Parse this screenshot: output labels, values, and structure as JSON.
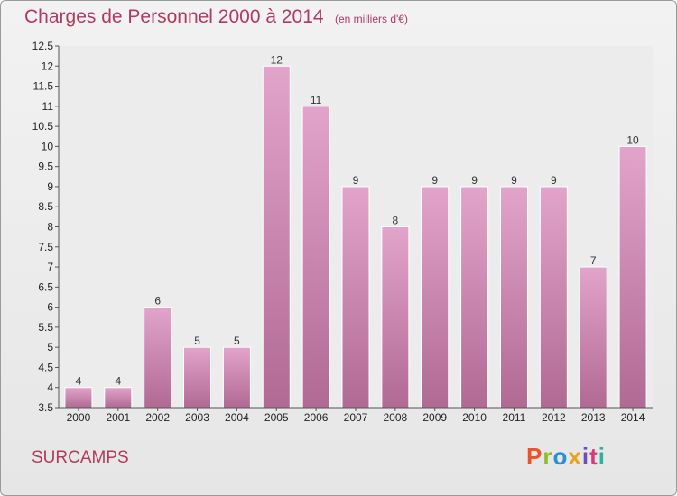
{
  "header": {
    "title": "Charges de Personnel 2000 à 2014",
    "subtitle": "(en milliers d'€)"
  },
  "footer": {
    "commune": "SURCAMPS",
    "logo_text": "Proxiti",
    "logo_colors": [
      "#e8542a",
      "#8bbd2e",
      "#2a8fd6",
      "#e8a21c",
      "#6a4fb6",
      "#d63a7a",
      "#2ab3a0"
    ]
  },
  "chart_data": {
    "type": "bar",
    "title": "Charges de Personnel 2000 à 2014",
    "subtitle": "(en milliers d'€)",
    "xlabel": "",
    "ylabel": "",
    "categories": [
      "2000",
      "2001",
      "2002",
      "2003",
      "2004",
      "2005",
      "2006",
      "2007",
      "2008",
      "2009",
      "2010",
      "2011",
      "2012",
      "2013",
      "2014"
    ],
    "values": [
      4,
      4,
      6,
      5,
      5,
      12,
      11,
      9,
      8,
      9,
      9,
      9,
      9,
      7,
      10
    ],
    "data_labels": [
      "4",
      "4",
      "6",
      "5",
      "5",
      "12",
      "11",
      "9",
      "8",
      "9",
      "9",
      "9",
      "9",
      "7",
      "10"
    ],
    "ylim": [
      3.5,
      12.5
    ],
    "yticks": [
      "3.5",
      "4",
      "4.5",
      "5",
      "5.5",
      "6",
      "6.5",
      "7",
      "7.5",
      "8",
      "8.5",
      "9",
      "9.5",
      "10",
      "10.5",
      "11",
      "11.5",
      "12",
      "12.5"
    ],
    "grid": false,
    "legend": "none",
    "bar_color_top": "#e2a4ca",
    "bar_color_bottom": "#b06a93"
  }
}
